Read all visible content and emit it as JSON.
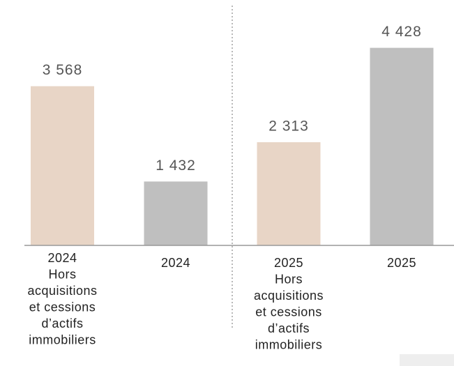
{
  "chart_data": {
    "type": "bar",
    "categories": [
      [
        "2024",
        "Hors",
        "acquisitions",
        "et cessions",
        "d’actifs",
        "immobiliers"
      ],
      [
        "2024"
      ],
      [
        "2025",
        "Hors",
        "acquisitions",
        "et cessions",
        "d’actifs",
        "immobiliers"
      ],
      [
        "2025"
      ]
    ],
    "values": [
      3568,
      1432,
      2313,
      4428
    ],
    "value_labels": [
      "3 568",
      "1 432",
      "2 313",
      "4 428"
    ],
    "colors": [
      "#e8d5c6",
      "#bfbfbf",
      "#e8d5c6",
      "#bfbfbf"
    ],
    "ylim": [
      0,
      5500
    ]
  }
}
